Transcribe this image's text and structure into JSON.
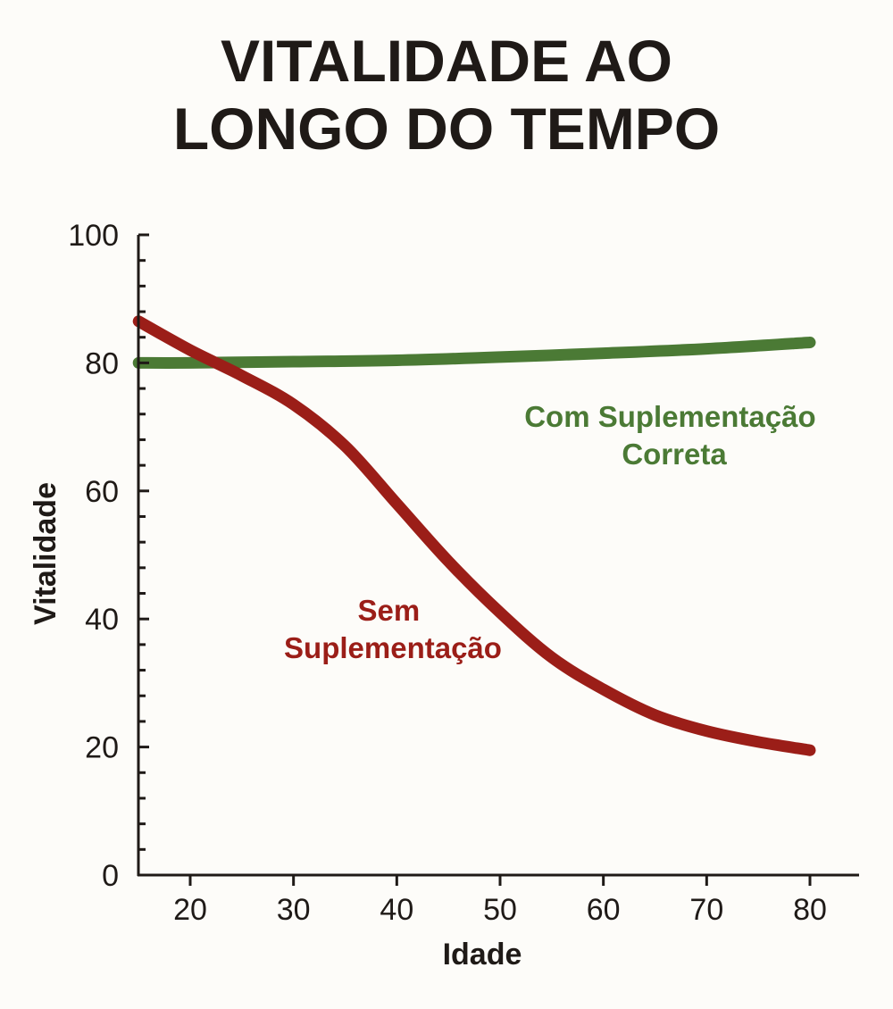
{
  "chart_data": {
    "type": "line",
    "title_lines": [
      "VITALIDADE AO",
      "LONGO DO TEMPO"
    ],
    "xlabel": "Idade",
    "ylabel": "Vitalidade",
    "xlim": [
      15,
      82
    ],
    "ylim": [
      0,
      100
    ],
    "xticks": [
      20,
      30,
      40,
      50,
      60,
      70,
      80
    ],
    "yticks": [
      0,
      20,
      40,
      60,
      80,
      100
    ],
    "grid": false,
    "legend": "none (inline labels)",
    "series": [
      {
        "name_lines": [
          "Com Suplementação",
          "Correta"
        ],
        "color": "#4b7a35",
        "points": [
          [
            15,
            80
          ],
          [
            20,
            80
          ],
          [
            30,
            80.2
          ],
          [
            40,
            80.4
          ],
          [
            50,
            80.9
          ],
          [
            60,
            81.5
          ],
          [
            70,
            82.2
          ],
          [
            80,
            83.2
          ]
        ]
      },
      {
        "name_lines": [
          "Sem",
          "Suplementação"
        ],
        "color": "#9b1e18",
        "points": [
          [
            15,
            86.5
          ],
          [
            20,
            82
          ],
          [
            25,
            78
          ],
          [
            30,
            73.5
          ],
          [
            35,
            67
          ],
          [
            40,
            58
          ],
          [
            45,
            49
          ],
          [
            50,
            41
          ],
          [
            55,
            34
          ],
          [
            60,
            29
          ],
          [
            65,
            25
          ],
          [
            70,
            22.5
          ],
          [
            75,
            20.8
          ],
          [
            80,
            19.5
          ]
        ]
      }
    ]
  }
}
